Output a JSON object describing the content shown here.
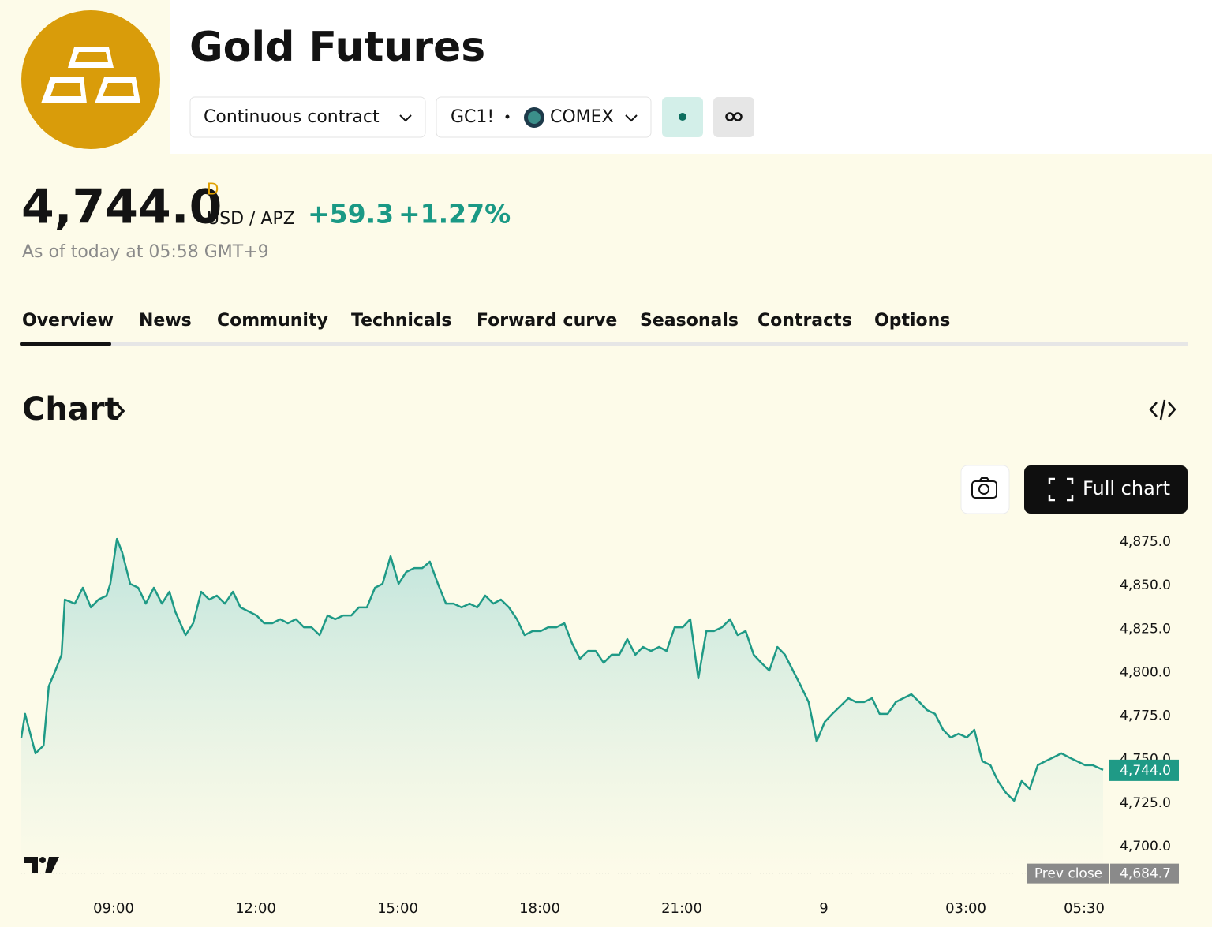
{
  "header": {
    "title": "Gold Futures",
    "contract": "Continuous contract",
    "symbol": "GC1!",
    "exchange": "COMEX"
  },
  "quote": {
    "price": "4,744.0",
    "badge": "D",
    "currency": "USD / APZ",
    "change": "+59.3",
    "change_percent": "+1.27%",
    "as_of": "As of today at 05:58 GMT+9"
  },
  "tabs": [
    "Overview",
    "News",
    "Community",
    "Technicals",
    "Forward curve",
    "Seasonals",
    "Contracts",
    "Options"
  ],
  "section": {
    "title": "Chart",
    "button": "Full chart"
  },
  "chart_data": {
    "type": "area",
    "color": "#1f9a86",
    "x": [
      7.05,
      7.13,
      7.35,
      7.52,
      7.63,
      7.77,
      7.9,
      7.97,
      8.18,
      8.35,
      8.52,
      8.68,
      8.85,
      8.93,
      9.07,
      9.18,
      9.35,
      9.52,
      9.68,
      9.85,
      10.02,
      10.18,
      10.3,
      10.52,
      10.68,
      10.85,
      11.02,
      11.18,
      11.35,
      11.52,
      11.68,
      11.85,
      12.02,
      12.18,
      12.35,
      12.52,
      12.68,
      12.85,
      13.02,
      13.18,
      13.35,
      13.52,
      13.68,
      13.85,
      14.02,
      14.18,
      14.35,
      14.52,
      14.68,
      14.85,
      15.02,
      15.18,
      15.35,
      15.52,
      15.68,
      15.85,
      16.02,
      16.18,
      16.35,
      16.52,
      16.68,
      16.85,
      17.02,
      17.18,
      17.35,
      17.52,
      17.68,
      17.85,
      18.02,
      18.18,
      18.35,
      18.52,
      18.68,
      18.85,
      19.02,
      19.18,
      19.35,
      19.52,
      19.68,
      19.85,
      20.02,
      20.18,
      20.35,
      20.52,
      20.68,
      20.85,
      21.02,
      21.18,
      21.35,
      21.52,
      21.68,
      21.85,
      22.02,
      22.18,
      22.35,
      22.52,
      22.68,
      22.85,
      23.02,
      23.18,
      23.35,
      23.52,
      23.68,
      23.85,
      24.02,
      24.18,
      24.35,
      24.52,
      24.68,
      24.85,
      25.02,
      25.18,
      25.35,
      25.52,
      25.68,
      25.85,
      26.02,
      26.18,
      26.35,
      26.52,
      26.68,
      26.85,
      27.02,
      27.18,
      27.35,
      27.52,
      27.68,
      27.85,
      28.02,
      28.18,
      28.35,
      28.52,
      28.68,
      28.85,
      29.02,
      29.18,
      29.35,
      29.52,
      29.68,
      29.9
    ],
    "values": [
      4762.6,
      4776.2,
      4753.5,
      4758.0,
      4792.0,
      4801.1,
      4810.2,
      4841.9,
      4839.6,
      4848.7,
      4837.4,
      4841.9,
      4844.2,
      4851.0,
      4876.8,
      4869.1,
      4851.0,
      4848.7,
      4839.6,
      4848.7,
      4839.6,
      4846.4,
      4835.1,
      4821.5,
      4828.3,
      4846.4,
      4841.9,
      4844.2,
      4839.6,
      4846.4,
      4837.4,
      4835.1,
      4832.8,
      4828.3,
      4828.3,
      4830.6,
      4828.3,
      4830.6,
      4826.0,
      4826.0,
      4821.5,
      4832.8,
      4830.6,
      4832.8,
      4832.8,
      4837.4,
      4837.4,
      4848.7,
      4851.0,
      4866.8,
      4851.0,
      4857.8,
      4860.0,
      4860.0,
      4863.7,
      4851.0,
      4839.6,
      4839.6,
      4837.4,
      4839.6,
      4837.4,
      4844.2,
      4839.6,
      4841.9,
      4837.4,
      4830.6,
      4821.5,
      4823.8,
      4823.8,
      4826.0,
      4826.0,
      4828.3,
      4817.0,
      4807.9,
      4812.4,
      4812.4,
      4805.6,
      4810.2,
      4810.2,
      4819.2,
      4810.2,
      4814.7,
      4812.4,
      4814.7,
      4812.4,
      4826.0,
      4826.0,
      4830.6,
      4796.6,
      4823.8,
      4823.8,
      4826.0,
      4830.6,
      4821.5,
      4823.8,
      4810.2,
      4805.6,
      4801.1,
      4814.7,
      4810.2,
      4801.1,
      4792.0,
      4783.0,
      4760.3,
      4771.6,
      4776.2,
      4780.7,
      4785.2,
      4783.0,
      4783.0,
      4785.2,
      4776.2,
      4776.2,
      4783.0,
      4785.2,
      4787.5,
      4783.0,
      4778.4,
      4776.2,
      4767.1,
      4762.6,
      4764.8,
      4762.6,
      4767.1,
      4749.0,
      4746.7,
      4737.6,
      4730.8,
      4726.3,
      4737.6,
      4733.1,
      4746.7,
      4749.0,
      4751.2,
      4753.5,
      4751.2,
      4749.0,
      4746.7,
      4746.7,
      4744.0
    ],
    "xlim": [
      7.05,
      30.0
    ],
    "xticks": [
      {
        "value": 9,
        "label": "09:00"
      },
      {
        "value": 12,
        "label": "12:00"
      },
      {
        "value": 15,
        "label": "15:00"
      },
      {
        "value": 18,
        "label": "18:00"
      },
      {
        "value": 21,
        "label": "21:00"
      },
      {
        "value": 24,
        "label": "9"
      },
      {
        "value": 27,
        "label": "03:00"
      },
      {
        "value": 29.5,
        "label": "05:30"
      }
    ],
    "ylim": [
      4680,
      4883
    ],
    "yticks": [
      {
        "value": 4700,
        "label": "4,700.0"
      },
      {
        "value": 4725,
        "label": "4,725.0"
      },
      {
        "value": 4750,
        "label": "4,750.0"
      },
      {
        "value": 4775,
        "label": "4,775.0"
      },
      {
        "value": 4800,
        "label": "4,800.0"
      },
      {
        "value": 4825,
        "label": "4,825.0"
      },
      {
        "value": 4850,
        "label": "4,850.0"
      },
      {
        "value": 4875,
        "label": "4,875.0"
      }
    ],
    "grid": false,
    "last_price": {
      "value": 4744.0,
      "label": "4,744.0"
    },
    "prev_close": {
      "name": "Prev close",
      "value": 4684.7,
      "label": "4,684.7"
    }
  }
}
